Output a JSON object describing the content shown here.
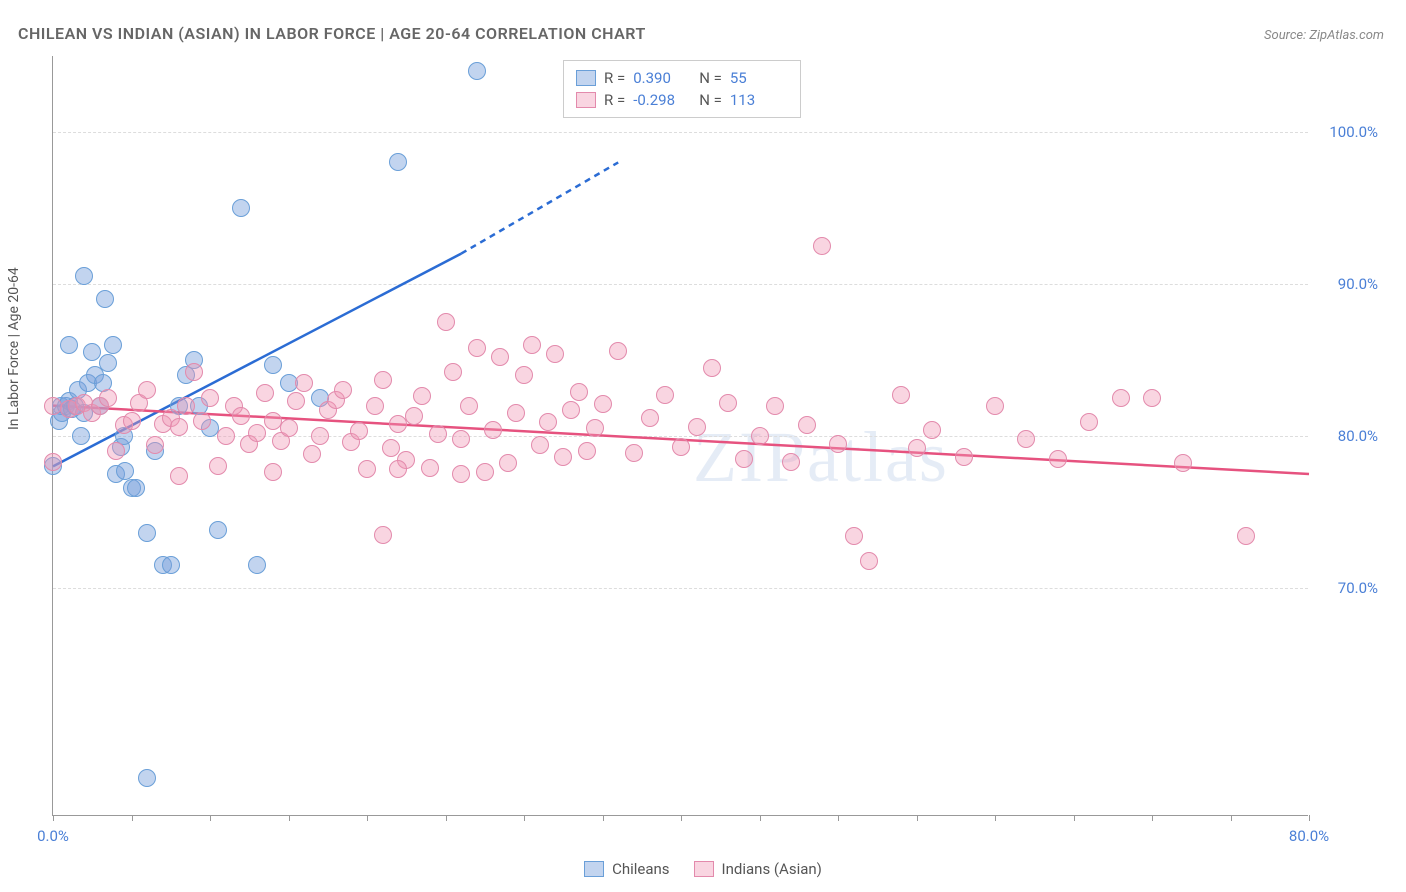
{
  "title": "CHILEAN VS INDIAN (ASIAN) IN LABOR FORCE | AGE 20-64 CORRELATION CHART",
  "source": "Source: ZipAtlas.com",
  "ylabel": "In Labor Force | Age 20-64",
  "watermark": "ZIPatlas",
  "chart": {
    "type": "scatter",
    "xlim": [
      0,
      80
    ],
    "ylim": [
      55,
      105
    ],
    "yticks": [
      70,
      80,
      90,
      100
    ],
    "ytick_labels": [
      "70.0%",
      "80.0%",
      "90.0%",
      "100.0%"
    ],
    "xticks": [
      0,
      5,
      10,
      15,
      20,
      25,
      30,
      35,
      40,
      45,
      50,
      55,
      60,
      65,
      70,
      75,
      80
    ],
    "xtick_labels": {
      "0": "0.0%",
      "80": "80.0%"
    },
    "grid_color": "#dddddd",
    "background_color": "#ffffff",
    "point_radius": 9
  },
  "series": [
    {
      "name": "Chileans",
      "color_fill": "rgba(120,160,220,0.45)",
      "color_stroke": "#6a9fd8",
      "trend_color": "#2b6cd4",
      "R": "0.390",
      "N": "55",
      "trend": {
        "p1": [
          0,
          78
        ],
        "p2": [
          26,
          92
        ],
        "dash_from_x": 26,
        "dash_to": [
          36,
          98
        ]
      },
      "points": [
        [
          0,
          78
        ],
        [
          0.4,
          81
        ],
        [
          0.5,
          82
        ],
        [
          0.6,
          81.5
        ],
        [
          0.8,
          82
        ],
        [
          1,
          82.3
        ],
        [
          1.2,
          81.8
        ],
        [
          1.4,
          82
        ],
        [
          1.6,
          83
        ],
        [
          1.8,
          80
        ],
        [
          2,
          81.5
        ],
        [
          2.2,
          83.5
        ],
        [
          2.5,
          85.5
        ],
        [
          2.7,
          84
        ],
        [
          3,
          82
        ],
        [
          3.2,
          83.5
        ],
        [
          3.5,
          84.8
        ],
        [
          3.8,
          86
        ],
        [
          4,
          77.5
        ],
        [
          4.3,
          79.3
        ],
        [
          4.5,
          80
        ],
        [
          5,
          76.6
        ],
        [
          5.3,
          76.6
        ],
        [
          6,
          73.6
        ],
        [
          6.5,
          79
        ],
        [
          7,
          71.5
        ],
        [
          7.5,
          71.5
        ],
        [
          8,
          82
        ],
        [
          8.5,
          84
        ],
        [
          9,
          85
        ],
        [
          9.3,
          82
        ],
        [
          10,
          80.5
        ],
        [
          10.5,
          73.8
        ],
        [
          12,
          95
        ],
        [
          13,
          71.5
        ],
        [
          14,
          84.7
        ],
        [
          15,
          83.5
        ],
        [
          17,
          82.5
        ],
        [
          22,
          98
        ],
        [
          27,
          104
        ],
        [
          2,
          90.5
        ],
        [
          3.3,
          89
        ],
        [
          4.6,
          77.7
        ],
        [
          6,
          57.5
        ],
        [
          1,
          86
        ]
      ]
    },
    {
      "name": "Indians (Asian)",
      "color_fill": "rgba(240,150,180,0.40)",
      "color_stroke": "#e38aac",
      "trend_color": "#e6527f",
      "R": "-0.298",
      "N": "113",
      "trend": {
        "p1": [
          0,
          82
        ],
        "p2": [
          80,
          77.5
        ]
      },
      "points": [
        [
          0,
          82
        ],
        [
          0,
          78.3
        ],
        [
          1,
          81.8
        ],
        [
          1.5,
          82
        ],
        [
          2,
          82.2
        ],
        [
          2.5,
          81.5
        ],
        [
          3,
          82
        ],
        [
          3.5,
          82.5
        ],
        [
          4,
          79
        ],
        [
          4.5,
          80.7
        ],
        [
          5,
          81
        ],
        [
          5.5,
          82.2
        ],
        [
          6,
          83
        ],
        [
          6.5,
          79.4
        ],
        [
          7,
          80.8
        ],
        [
          7.5,
          81.2
        ],
        [
          8,
          80.6
        ],
        [
          8.5,
          82
        ],
        [
          9,
          84.2
        ],
        [
          9.5,
          81
        ],
        [
          10,
          82.5
        ],
        [
          10.5,
          78
        ],
        [
          11,
          80
        ],
        [
          11.5,
          82
        ],
        [
          12,
          81.3
        ],
        [
          12.5,
          79.5
        ],
        [
          13,
          80.2
        ],
        [
          13.5,
          82.8
        ],
        [
          14,
          81
        ],
        [
          14.5,
          79.7
        ],
        [
          15,
          80.5
        ],
        [
          15.5,
          82.3
        ],
        [
          16,
          83.5
        ],
        [
          16.5,
          78.8
        ],
        [
          17,
          80
        ],
        [
          17.5,
          81.7
        ],
        [
          18,
          82.4
        ],
        [
          18.5,
          83
        ],
        [
          19,
          79.6
        ],
        [
          19.5,
          80.3
        ],
        [
          20,
          77.8
        ],
        [
          20.5,
          82
        ],
        [
          21,
          83.7
        ],
        [
          21.5,
          79.2
        ],
        [
          22,
          80.8
        ],
        [
          22.5,
          78.4
        ],
        [
          23,
          81.3
        ],
        [
          23.5,
          82.6
        ],
        [
          24,
          77.9
        ],
        [
          24.5,
          80.1
        ],
        [
          25,
          87.5
        ],
        [
          25.5,
          84.2
        ],
        [
          26,
          79.8
        ],
        [
          26.5,
          82
        ],
        [
          27,
          85.8
        ],
        [
          27.5,
          77.6
        ],
        [
          28,
          80.4
        ],
        [
          28.5,
          85.2
        ],
        [
          29,
          78.2
        ],
        [
          29.5,
          81.5
        ],
        [
          30,
          84
        ],
        [
          30.5,
          86
        ],
        [
          31,
          79.4
        ],
        [
          31.5,
          80.9
        ],
        [
          32,
          85.4
        ],
        [
          32.5,
          78.6
        ],
        [
          33,
          81.7
        ],
        [
          33.5,
          82.9
        ],
        [
          34,
          79
        ],
        [
          34.5,
          80.5
        ],
        [
          35,
          82.1
        ],
        [
          36,
          85.6
        ],
        [
          37,
          78.9
        ],
        [
          38,
          81.2
        ],
        [
          39,
          82.7
        ],
        [
          40,
          79.3
        ],
        [
          41,
          80.6
        ],
        [
          42,
          84.5
        ],
        [
          43,
          82.2
        ],
        [
          44,
          78.5
        ],
        [
          45,
          80
        ],
        [
          46,
          82
        ],
        [
          47,
          78.3
        ],
        [
          48,
          80.7
        ],
        [
          49,
          92.5
        ],
        [
          50,
          79.5
        ],
        [
          51,
          73.4
        ],
        [
          52,
          71.8
        ],
        [
          54,
          82.7
        ],
        [
          55,
          79.2
        ],
        [
          56,
          80.4
        ],
        [
          58,
          78.6
        ],
        [
          60,
          82
        ],
        [
          62,
          79.8
        ],
        [
          64,
          78.5
        ],
        [
          66,
          80.9
        ],
        [
          68,
          82.5
        ],
        [
          70,
          82.5
        ],
        [
          72,
          78.2
        ],
        [
          76,
          73.4
        ],
        [
          21,
          73.5
        ],
        [
          26,
          77.5
        ],
        [
          22,
          77.8
        ],
        [
          14,
          77.6
        ],
        [
          8,
          77.4
        ]
      ]
    }
  ],
  "stats_legend": {
    "r_label": "R =",
    "n_label": "N ="
  }
}
